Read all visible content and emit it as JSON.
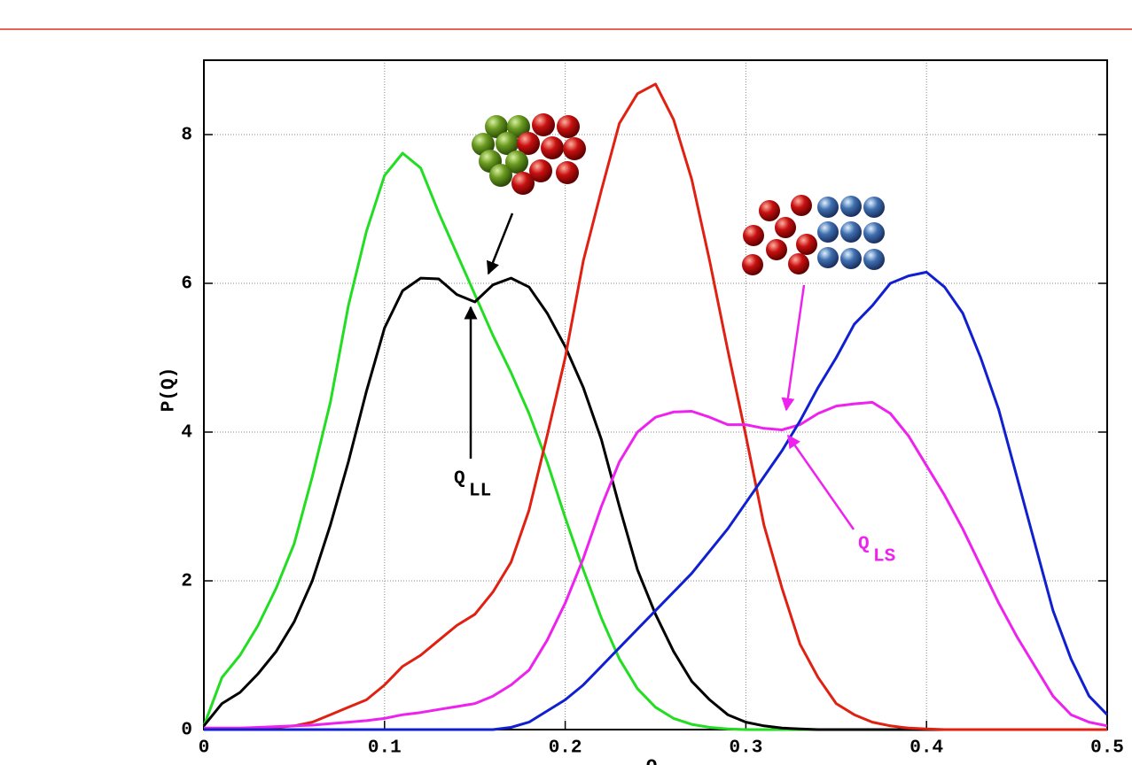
{
  "chart_data": {
    "type": "line",
    "x_label": "Q",
    "y_label": "P(Q)",
    "x": [
      0,
      0.01,
      0.02,
      0.03,
      0.04,
      0.05,
      0.06,
      0.07,
      0.08,
      0.09,
      0.1,
      0.11,
      0.12,
      0.13,
      0.14,
      0.15,
      0.16,
      0.17,
      0.18,
      0.19,
      0.2,
      0.21,
      0.22,
      0.23,
      0.24,
      0.25,
      0.26,
      0.27,
      0.28,
      0.29,
      0.3,
      0.31,
      0.32,
      0.33,
      0.34,
      0.35,
      0.36,
      0.37,
      0.38,
      0.39,
      0.4,
      0.41,
      0.42,
      0.43,
      0.44,
      0.45,
      0.46,
      0.47,
      0.48,
      0.49,
      0.5
    ],
    "series": [
      {
        "color": "#22dd22",
        "values": [
          0.05,
          0.7,
          1.0,
          1.4,
          1.9,
          2.5,
          3.4,
          4.4,
          5.7,
          6.7,
          7.45,
          7.75,
          7.55,
          6.95,
          6.4,
          5.85,
          5.3,
          4.8,
          4.25,
          3.6,
          2.85,
          2.15,
          1.5,
          0.95,
          0.55,
          0.3,
          0.15,
          0.07,
          0.03,
          0.01,
          0,
          0,
          0,
          0,
          0,
          0,
          0,
          0,
          0,
          0,
          0,
          0,
          0,
          0,
          0,
          0,
          0,
          0,
          0,
          0,
          0
        ]
      },
      {
        "color": "#000000",
        "values": [
          0.05,
          0.35,
          0.5,
          0.75,
          1.05,
          1.45,
          2.0,
          2.75,
          3.6,
          4.55,
          5.4,
          5.9,
          6.07,
          6.06,
          5.85,
          5.75,
          5.98,
          6.07,
          5.95,
          5.6,
          5.15,
          4.6,
          3.9,
          3.0,
          2.15,
          1.55,
          1.05,
          0.65,
          0.4,
          0.2,
          0.1,
          0.05,
          0.02,
          0.01,
          0,
          0,
          0,
          0,
          0,
          0,
          0,
          0,
          0,
          0,
          0,
          0,
          0,
          0,
          0,
          0,
          0
        ]
      },
      {
        "color": "#e02010",
        "values": [
          0,
          0,
          0.01,
          0.02,
          0.03,
          0.05,
          0.1,
          0.2,
          0.3,
          0.4,
          0.6,
          0.85,
          1.0,
          1.2,
          1.4,
          1.55,
          1.85,
          2.25,
          2.95,
          3.95,
          5.0,
          6.3,
          7.25,
          8.15,
          8.55,
          8.68,
          8.2,
          7.4,
          6.3,
          5.1,
          3.95,
          2.75,
          1.9,
          1.15,
          0.7,
          0.35,
          0.2,
          0.1,
          0.05,
          0.02,
          0.01,
          0,
          0,
          0,
          0,
          0,
          0,
          0,
          0,
          0,
          0
        ]
      },
      {
        "color": "#ee22ee",
        "values": [
          0.02,
          0.02,
          0.02,
          0.03,
          0.04,
          0.05,
          0.06,
          0.08,
          0.1,
          0.12,
          0.15,
          0.2,
          0.23,
          0.27,
          0.31,
          0.35,
          0.45,
          0.6,
          0.8,
          1.2,
          1.7,
          2.3,
          3.0,
          3.6,
          4.0,
          4.2,
          4.27,
          4.28,
          4.2,
          4.1,
          4.1,
          4.05,
          4.03,
          4.1,
          4.25,
          4.35,
          4.38,
          4.4,
          4.25,
          3.95,
          3.55,
          3.15,
          2.7,
          2.2,
          1.7,
          1.25,
          0.85,
          0.45,
          0.2,
          0.1,
          0.05
        ]
      },
      {
        "color": "#1020d0",
        "values": [
          0,
          0,
          0,
          0,
          0,
          0,
          0,
          0,
          0,
          0,
          0,
          0,
          0,
          0,
          0,
          0,
          0,
          0.03,
          0.1,
          0.25,
          0.4,
          0.6,
          0.85,
          1.1,
          1.35,
          1.6,
          1.85,
          2.1,
          2.4,
          2.7,
          3.05,
          3.4,
          3.75,
          4.15,
          4.6,
          5.0,
          5.45,
          5.7,
          6.0,
          6.1,
          6.15,
          5.95,
          5.6,
          5.0,
          4.3,
          3.4,
          2.5,
          1.6,
          0.95,
          0.45,
          0.2
        ]
      }
    ],
    "xlim": [
      0,
      0.5
    ],
    "ylim": [
      0,
      9
    ],
    "xticks": [
      0,
      0.1,
      0.2,
      0.3,
      0.4,
      0.5
    ],
    "yticks": [
      0,
      2,
      4,
      6,
      8
    ],
    "grid": true,
    "annotations": [
      {
        "text": "Q",
        "sub": "LL",
        "color": "#000000"
      },
      {
        "text": "Q",
        "sub": "LS",
        "color": "#ee22ee"
      }
    ]
  }
}
